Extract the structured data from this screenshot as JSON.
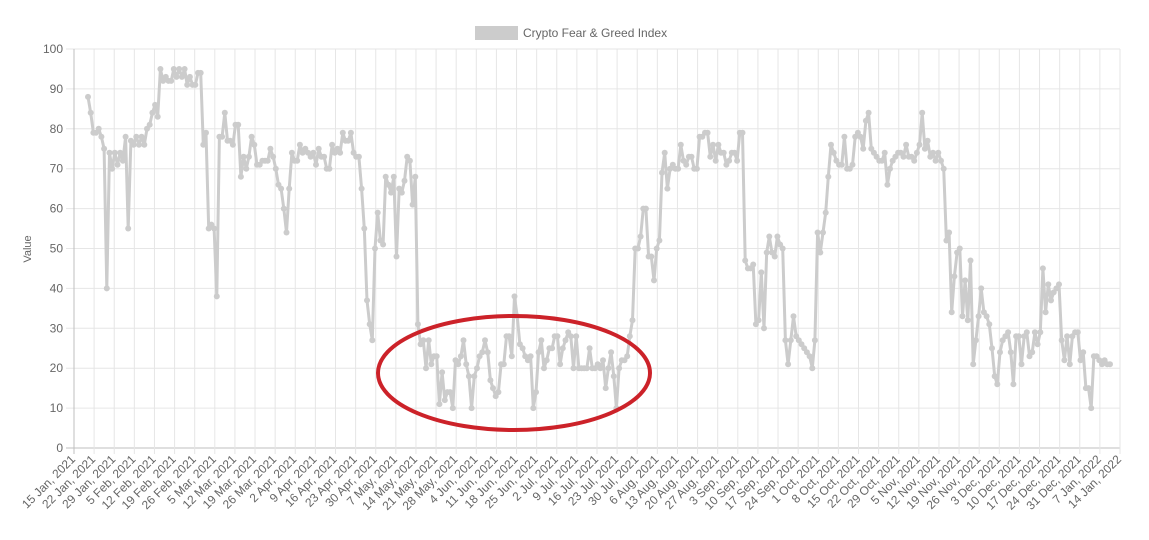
{
  "chart_data": {
    "type": "line",
    "series": [
      {
        "name": "Crypto Fear & Greed Index",
        "color": "#cccccc",
        "values": [
          88,
          84,
          79,
          79,
          80,
          78,
          75,
          40,
          74,
          70,
          74,
          71,
          74,
          72,
          78,
          55,
          77,
          76,
          78,
          76,
          78,
          76,
          80,
          81,
          84,
          86,
          83,
          95,
          92,
          93,
          92,
          92,
          95,
          93,
          95,
          93,
          95,
          91,
          93,
          91,
          91,
          94,
          94,
          76,
          79,
          55,
          56,
          55,
          38,
          78,
          78,
          84,
          77,
          77,
          76,
          81,
          81,
          68,
          73,
          70,
          73,
          78,
          76,
          71,
          71,
          72,
          72,
          72,
          75,
          73,
          70,
          66,
          65,
          60,
          54,
          65,
          74,
          72,
          72,
          76,
          74,
          75,
          74,
          73,
          74,
          71,
          75,
          73,
          73,
          70,
          70,
          76,
          74,
          75,
          74,
          79,
          77,
          77,
          79,
          74,
          73,
          73,
          65,
          55,
          37,
          31,
          27,
          50,
          59,
          52,
          51,
          68,
          66,
          64,
          68,
          48,
          65,
          64,
          67,
          73,
          72,
          61,
          68,
          31,
          26,
          27,
          20,
          27,
          21,
          23,
          23,
          11,
          19,
          12,
          14,
          14,
          10,
          22,
          21,
          23,
          27,
          21,
          18,
          10,
          18,
          20,
          23,
          24,
          27,
          24,
          17,
          15,
          13,
          14,
          21,
          21,
          28,
          28,
          23,
          38,
          33,
          26,
          25,
          23,
          22,
          23,
          10,
          14,
          24,
          27,
          20,
          22,
          25,
          25,
          28,
          28,
          21,
          25,
          27,
          29,
          28,
          20,
          28,
          20,
          20,
          20,
          20,
          25,
          20,
          20,
          21,
          20,
          22,
          15,
          20,
          24,
          18,
          10,
          20,
          22,
          22,
          23,
          28,
          32,
          50,
          50,
          53,
          60,
          60,
          48,
          48,
          42,
          50,
          52,
          69,
          74,
          65,
          70,
          71,
          70,
          70,
          76,
          72,
          71,
          73,
          73,
          70,
          70,
          78,
          78,
          79,
          79,
          73,
          76,
          72,
          76,
          74,
          74,
          71,
          72,
          74,
          74,
          72,
          79,
          79,
          47,
          45,
          45,
          46,
          31,
          32,
          44,
          30,
          49,
          53,
          49,
          48,
          53,
          51,
          50,
          27,
          21,
          27,
          33,
          28,
          27,
          26,
          25,
          24,
          23,
          20,
          27,
          54,
          49,
          54,
          59,
          68,
          76,
          74,
          72,
          71,
          71,
          78,
          70,
          70,
          71,
          78,
          79,
          78,
          75,
          82,
          84,
          75,
          74,
          73,
          72,
          72,
          74,
          66,
          70,
          72,
          73,
          74,
          74,
          73,
          76,
          73,
          73,
          72,
          74,
          76,
          84,
          75,
          77,
          73,
          74,
          72,
          74,
          72,
          70,
          52,
          54,
          34,
          43,
          49,
          50,
          33,
          42,
          32,
          47,
          21,
          27,
          33,
          40,
          34,
          33,
          31,
          25,
          18,
          16,
          24,
          27,
          28,
          29,
          24,
          16,
          28,
          28,
          21,
          28,
          29,
          23,
          24,
          29,
          26,
          29,
          45,
          34,
          41,
          37,
          39,
          40,
          41,
          27,
          22,
          28,
          21,
          28,
          29,
          29,
          22,
          24,
          15,
          15,
          10,
          23,
          23,
          22,
          21,
          22,
          21,
          21
        ]
      }
    ],
    "x_tick_labels": [
      "15 Jan, 2021",
      "22 Jan, 2021",
      "29 Jan, 2021",
      "5 Feb, 2021",
      "12 Feb, 2021",
      "19 Feb, 2021",
      "26 Feb, 2021",
      "5 Mar, 2021",
      "12 Mar, 2021",
      "19 Mar, 2021",
      "26 Mar, 2021",
      "2 Apr, 2021",
      "9 Apr, 2021",
      "16 Apr, 2021",
      "23 Apr, 2021",
      "30 Apr, 2021",
      "7 May, 2021",
      "14 May, 2021",
      "21 May, 2021",
      "28 May, 2021",
      "4 Jun, 2021",
      "11 Jun, 2021",
      "18 Jun, 2021",
      "25 Jun, 2021",
      "2 Jul, 2021",
      "9 Jul, 2021",
      "16 Jul, 2021",
      "23 Jul, 2021",
      "30 Jul, 2021",
      "6 Aug, 2021",
      "13 Aug, 2021",
      "20 Aug, 2021",
      "27 Aug, 2021",
      "3 Sep, 2021",
      "10 Sep, 2021",
      "17 Sep, 2021",
      "24 Sep, 2021",
      "1 Oct, 2021",
      "8 Oct, 2021",
      "15 Oct, 2021",
      "22 Oct, 2021",
      "29 Oct, 2021",
      "5 Nov, 2021",
      "12 Nov, 2021",
      "19 Nov, 2021",
      "26 Nov, 2021",
      "3 Dec, 2021",
      "10 Dec, 2021",
      "17 Dec, 2021",
      "24 Dec, 2021",
      "31 Dec, 2021",
      "7 Jan, 2022",
      "14 Jan, 2022"
    ],
    "y_ticks": [
      0,
      10,
      20,
      30,
      40,
      50,
      60,
      70,
      80,
      90,
      100
    ],
    "ylim": [
      0,
      100
    ],
    "ylabel": "Value",
    "xlabel": "",
    "grid": true,
    "legend_position": "top-center",
    "annotation": {
      "type": "ellipse",
      "color": "#cc2229"
    }
  }
}
